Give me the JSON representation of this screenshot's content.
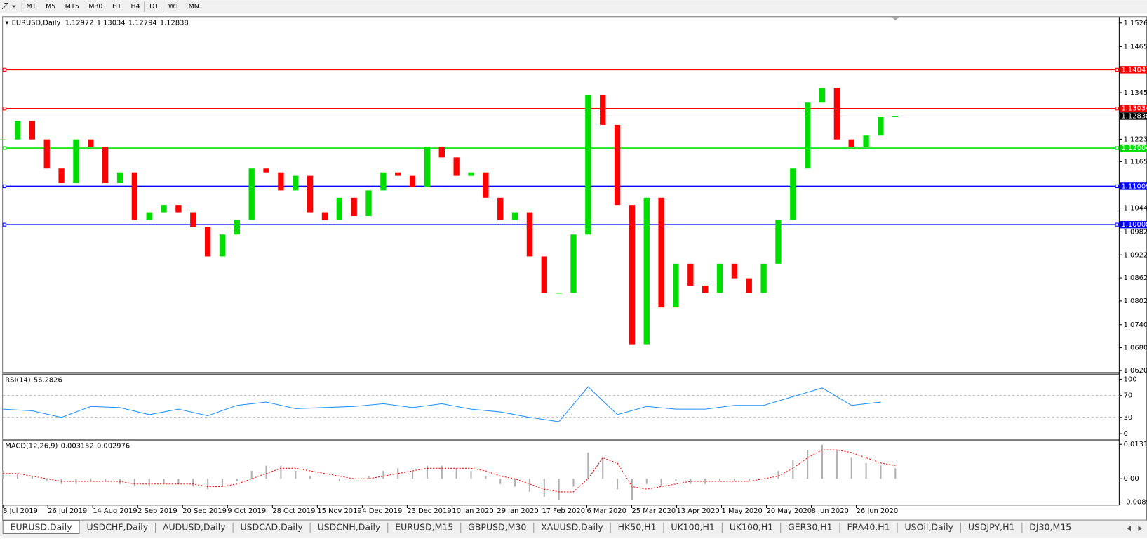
{
  "toolbar": {
    "timeframes": [
      "M1",
      "M5",
      "M15",
      "M30",
      "H1",
      "H4",
      "D1",
      "W1",
      "MN"
    ]
  },
  "chart": {
    "symbol": "EURUSD,Daily",
    "ohlc": [
      1.12972,
      1.13034,
      1.12794,
      1.12838
    ],
    "ylim": [
      1.0617,
      1.1542
    ],
    "ticks": [
      {
        "value": 1.15265,
        "label": "1.15265"
      },
      {
        "value": 1.1465,
        "label": "1.14650"
      },
      {
        "value": 1.1345,
        "label": "1.13450"
      },
      {
        "value": 1.12235,
        "label": "1.12235"
      },
      {
        "value": 1.1165,
        "label": "1.11650"
      },
      {
        "value": 1.1044,
        "label": "1.10440"
      },
      {
        "value": 1.0982,
        "label": "1.09820"
      },
      {
        "value": 1.0922,
        "label": "1.09220"
      },
      {
        "value": 1.0862,
        "label": "1.08620"
      },
      {
        "value": 1.0802,
        "label": "1.08020"
      },
      {
        "value": 1.074,
        "label": "1.07400"
      },
      {
        "value": 1.068,
        "label": "1.06800"
      },
      {
        "value": 1.06205,
        "label": "1.06205"
      }
    ],
    "levels": [
      {
        "value": 1.14047,
        "color": "#ff0000"
      },
      {
        "value": 1.13034,
        "color": "#ff0000"
      },
      {
        "value": 1.12004,
        "color": "#00e000"
      },
      {
        "value": 1.11009,
        "color": "#0000ff"
      },
      {
        "value": 1.10008,
        "color": "#0000ff"
      }
    ],
    "current_price": 1.12838,
    "closes": [
      1.1223,
      1.1271,
      1.1223,
      1.1147,
      1.1109,
      1.1223,
      1.1204,
      1.1109,
      1.1137,
      1.1013,
      1.1033,
      1.1052,
      1.1033,
      1.0995,
      1.0918,
      1.0975,
      1.1013,
      1.1147,
      1.1137,
      1.109,
      1.1128,
      1.1033,
      1.1013,
      1.1071,
      1.1023,
      1.109,
      1.1137,
      1.1128,
      1.1099,
      1.1204,
      1.1176,
      1.1128,
      1.1137,
      1.1071,
      1.1013,
      1.1033,
      1.0918,
      1.0823,
      1.0823,
      1.0975,
      1.1338,
      1.1261,
      1.1052,
      1.0689,
      1.1071,
      1.0785,
      1.0899,
      1.0842,
      1.0823,
      1.0899,
      1.0861,
      1.0823,
      1.0899,
      1.1013,
      1.1147,
      1.1319,
      1.1357,
      1.1223,
      1.1204,
      1.1233,
      1.1281,
      1.1284
    ],
    "dates": [
      "8 Jul 2019",
      "26 Jul 2019",
      "14 Aug 2019",
      "2 Sep 2019",
      "20 Sep 2019",
      "9 Oct 2019",
      "28 Oct 2019",
      "15 Nov 2019",
      "4 Dec 2019",
      "23 Dec 2019",
      "10 Jan 2020",
      "29 Jan 2020",
      "17 Feb 2020",
      "6 Mar 2020",
      "25 Mar 2020",
      "13 Apr 2020",
      "1 May 2020",
      "20 May 2020",
      "8 Jun 2020",
      "26 Jun 2020"
    ]
  },
  "rsi": {
    "label": "RSI(14)",
    "value": 56.2826,
    "ylim": [
      -10,
      108
    ],
    "ticks": [
      100,
      70,
      30,
      0
    ],
    "levels": [
      70,
      30
    ],
    "values": [
      45,
      42,
      30,
      50,
      48,
      35,
      45,
      33,
      52,
      58,
      46,
      48,
      50,
      55,
      48,
      55,
      45,
      40,
      30,
      22,
      86,
      35,
      50,
      45,
      45,
      52,
      52,
      68,
      84,
      52,
      58
    ]
  },
  "macd": {
    "label": "MACD(12,26,9)",
    "main": 0.003152,
    "signal": 0.002976,
    "ylim": [
      -0.01005,
      0.01396
    ],
    "ticks": [
      0.01312,
      {
        "value": 0,
        "label": "0.00"
      },
      -0.00893
    ],
    "histogram": [
      0.003,
      0.002,
      0.001,
      -0.001,
      -0.002,
      -0.002,
      -0.001,
      -0.001,
      -0.002,
      -0.003,
      -0.003,
      -0.002,
      -0.002,
      -0.003,
      -0.004,
      -0.003,
      -0.001,
      0.003,
      0.005,
      0.005,
      0.003,
      0.001,
      0,
      -0.001,
      0,
      0.001,
      0.003,
      0.004,
      0.003,
      0.005,
      0.005,
      0.004,
      0.003,
      0.001,
      -0.002,
      -0.003,
      -0.005,
      -0.007,
      -0.008,
      -0.003,
      0.01,
      0.008,
      -0.004,
      -0.008,
      -0.002,
      -0.003,
      -0.001,
      -0.002,
      -0.002,
      -0.001,
      -0.001,
      -0.001,
      0,
      0.003,
      0.007,
      0.011,
      0.013,
      0.011,
      0.008,
      0.006,
      0.005,
      0.004
    ],
    "signal_line": [
      0.002,
      0.002,
      0.001,
      0,
      -0.001,
      -0.001,
      -0.001,
      -0.001,
      -0.001,
      -0.002,
      -0.002,
      -0.002,
      -0.002,
      -0.002,
      -0.003,
      -0.003,
      -0.002,
      0,
      0.002,
      0.004,
      0.004,
      0.003,
      0.002,
      0.001,
      0,
      0,
      0.001,
      0.002,
      0.003,
      0.004,
      0.004,
      0.004,
      0.004,
      0.003,
      0.001,
      0,
      -0.002,
      -0.004,
      -0.005,
      -0.005,
      0,
      0.008,
      0.006,
      -0.003,
      -0.004,
      -0.003,
      -0.002,
      -0.001,
      -0.001,
      -0.001,
      -0.001,
      -0.001,
      0,
      0.001,
      0.004,
      0.008,
      0.011,
      0.011,
      0.01,
      0.008,
      0.006,
      0.005
    ]
  },
  "tabs": [
    "EURUSD,Daily",
    "USDCHF,Daily",
    "AUDUSD,Daily",
    "USDCAD,Daily",
    "USDCNH,Daily",
    "EURUSD,M15",
    "GBPUSD,M30",
    "XAUUSD,Daily",
    "HK50,H1",
    "UK100,H1",
    "UK100,H1",
    "GER30,H1",
    "FRA40,H1",
    "USOil,Daily",
    "USDJPY,H1",
    "DJ30,M15"
  ]
}
